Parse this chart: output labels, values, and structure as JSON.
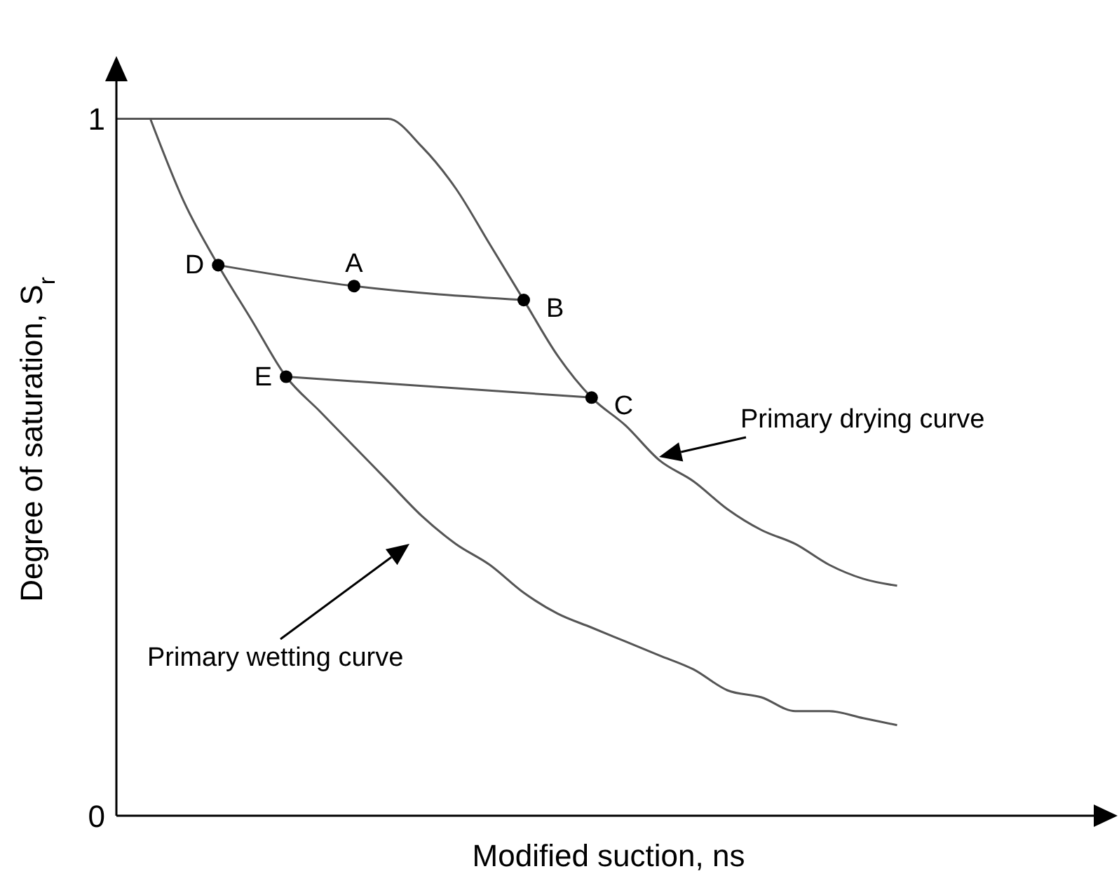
{
  "chart_data": {
    "type": "line",
    "xlabel": "Modified suction, ns",
    "ylabel": "Degree of saturation, S$_{r}$",
    "categories": [
      null,
      null,
      null,
      null,
      null,
      null,
      null,
      null,
      null,
      null,
      null,
      null,
      null,
      null,
      null,
      null,
      null,
      null,
      null,
      null,
      null,
      null,
      null,
      null,
      null,
      null,
      null,
      null,
      null,
      null
    ],
    "series": [
      {
        "color": "#555555",
        "values": [
          1,
          1,
          1,
          1,
          1,
          1,
          1,
          1,
          1,
          0.96,
          0.9,
          0.82,
          0.74,
          0.66,
          0.6,
          0.56,
          0.51,
          0.48,
          0.44,
          0.41,
          0.39,
          0.36,
          0.34,
          0.33,
          null,
          null,
          null,
          null,
          null,
          null
        ]
      },
      {
        "color": "#555555",
        "values": [
          null,
          1,
          0.88,
          0.79,
          0.71,
          0.63,
          0.58,
          0.53,
          0.48,
          0.43,
          0.39,
          0.36,
          0.32,
          0.29,
          0.27,
          0.25,
          0.23,
          0.21,
          0.18,
          0.17,
          0.15,
          0.15,
          0.14,
          0.13,
          null,
          null,
          null,
          null,
          null,
          null
        ]
      },
      {
        "color": "#555555",
        "values": [
          null,
          null,
          null,
          0.79,
          null,
          null,
          null,
          0.76,
          null,
          null,
          null,
          null,
          0.74,
          null,
          null,
          null,
          null,
          null,
          null,
          null,
          null,
          null,
          null,
          null,
          null,
          null,
          null,
          null,
          null,
          null
        ]
      },
      {
        "color": "#555555",
        "values": [
          null,
          null,
          null,
          null,
          null,
          0.63,
          null,
          null,
          null,
          null,
          null,
          null,
          null,
          null,
          0.6,
          null,
          null,
          null,
          null,
          null,
          null,
          null,
          null,
          null,
          null,
          null,
          null,
          null,
          null,
          null
        ]
      },
      {
        "type": "scatter",
        "color": "#000000",
        "marker": "circle",
        "values": [
          null,
          null,
          null,
          0.79,
          null,
          0.63,
          null,
          0.76,
          null,
          null,
          null,
          null,
          0.74,
          null,
          0.6,
          null,
          null,
          null,
          null,
          null,
          null,
          null,
          null,
          null,
          null,
          null,
          null,
          null,
          null,
          null
        ],
        "value_labels": [
          null,
          null,
          null,
          "D",
          null,
          "E",
          null,
          "A",
          null,
          null,
          null,
          null,
          "B",
          null,
          "C",
          null,
          null,
          null,
          null,
          null,
          null,
          null,
          null,
          null,
          null,
          null,
          null,
          null,
          null,
          null
        ]
      }
    ],
    "marker": "none",
    "line_style": "solid",
    "ylim": [
      0,
      1.08
    ],
    "yticks": [
      0,
      1
    ],
    "tick_labels": "y",
    "grid": false,
    "legend": false,
    "annotations": [
      "Primary drying curve",
      "Primary wetting curve"
    ]
  }
}
